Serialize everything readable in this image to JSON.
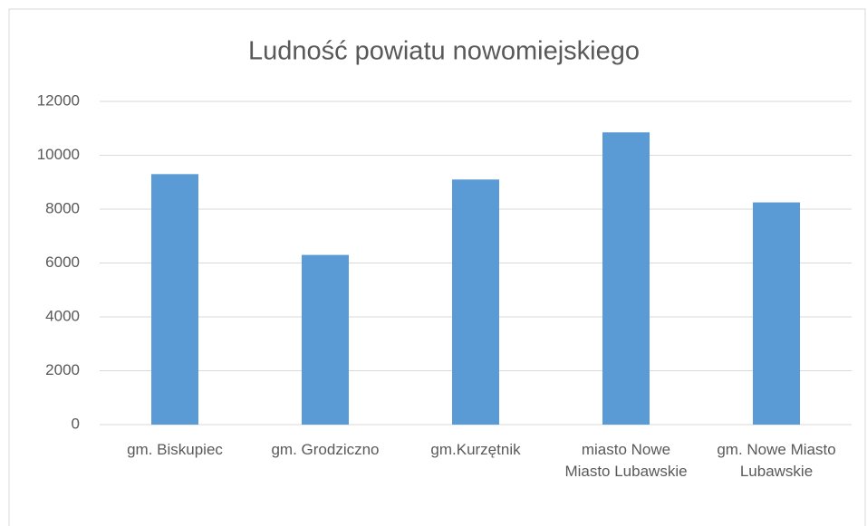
{
  "chart_data": {
    "type": "bar",
    "title": "Ludność powiatu nowomiejskiego",
    "categories": [
      "gm. Biskupiec",
      "gm. Grodziczno",
      "gm.Kurzętnik",
      "miasto Nowe Miasto Lubawskie",
      "gm. Nowe Miasto Lubawskie"
    ],
    "values": [
      9300,
      6300,
      9100,
      10850,
      8250
    ],
    "color": "#5b9bd5",
    "ylim": [
      0,
      12000
    ],
    "yticks": [
      0,
      2000,
      4000,
      6000,
      8000,
      10000,
      12000
    ],
    "grid": true
  }
}
